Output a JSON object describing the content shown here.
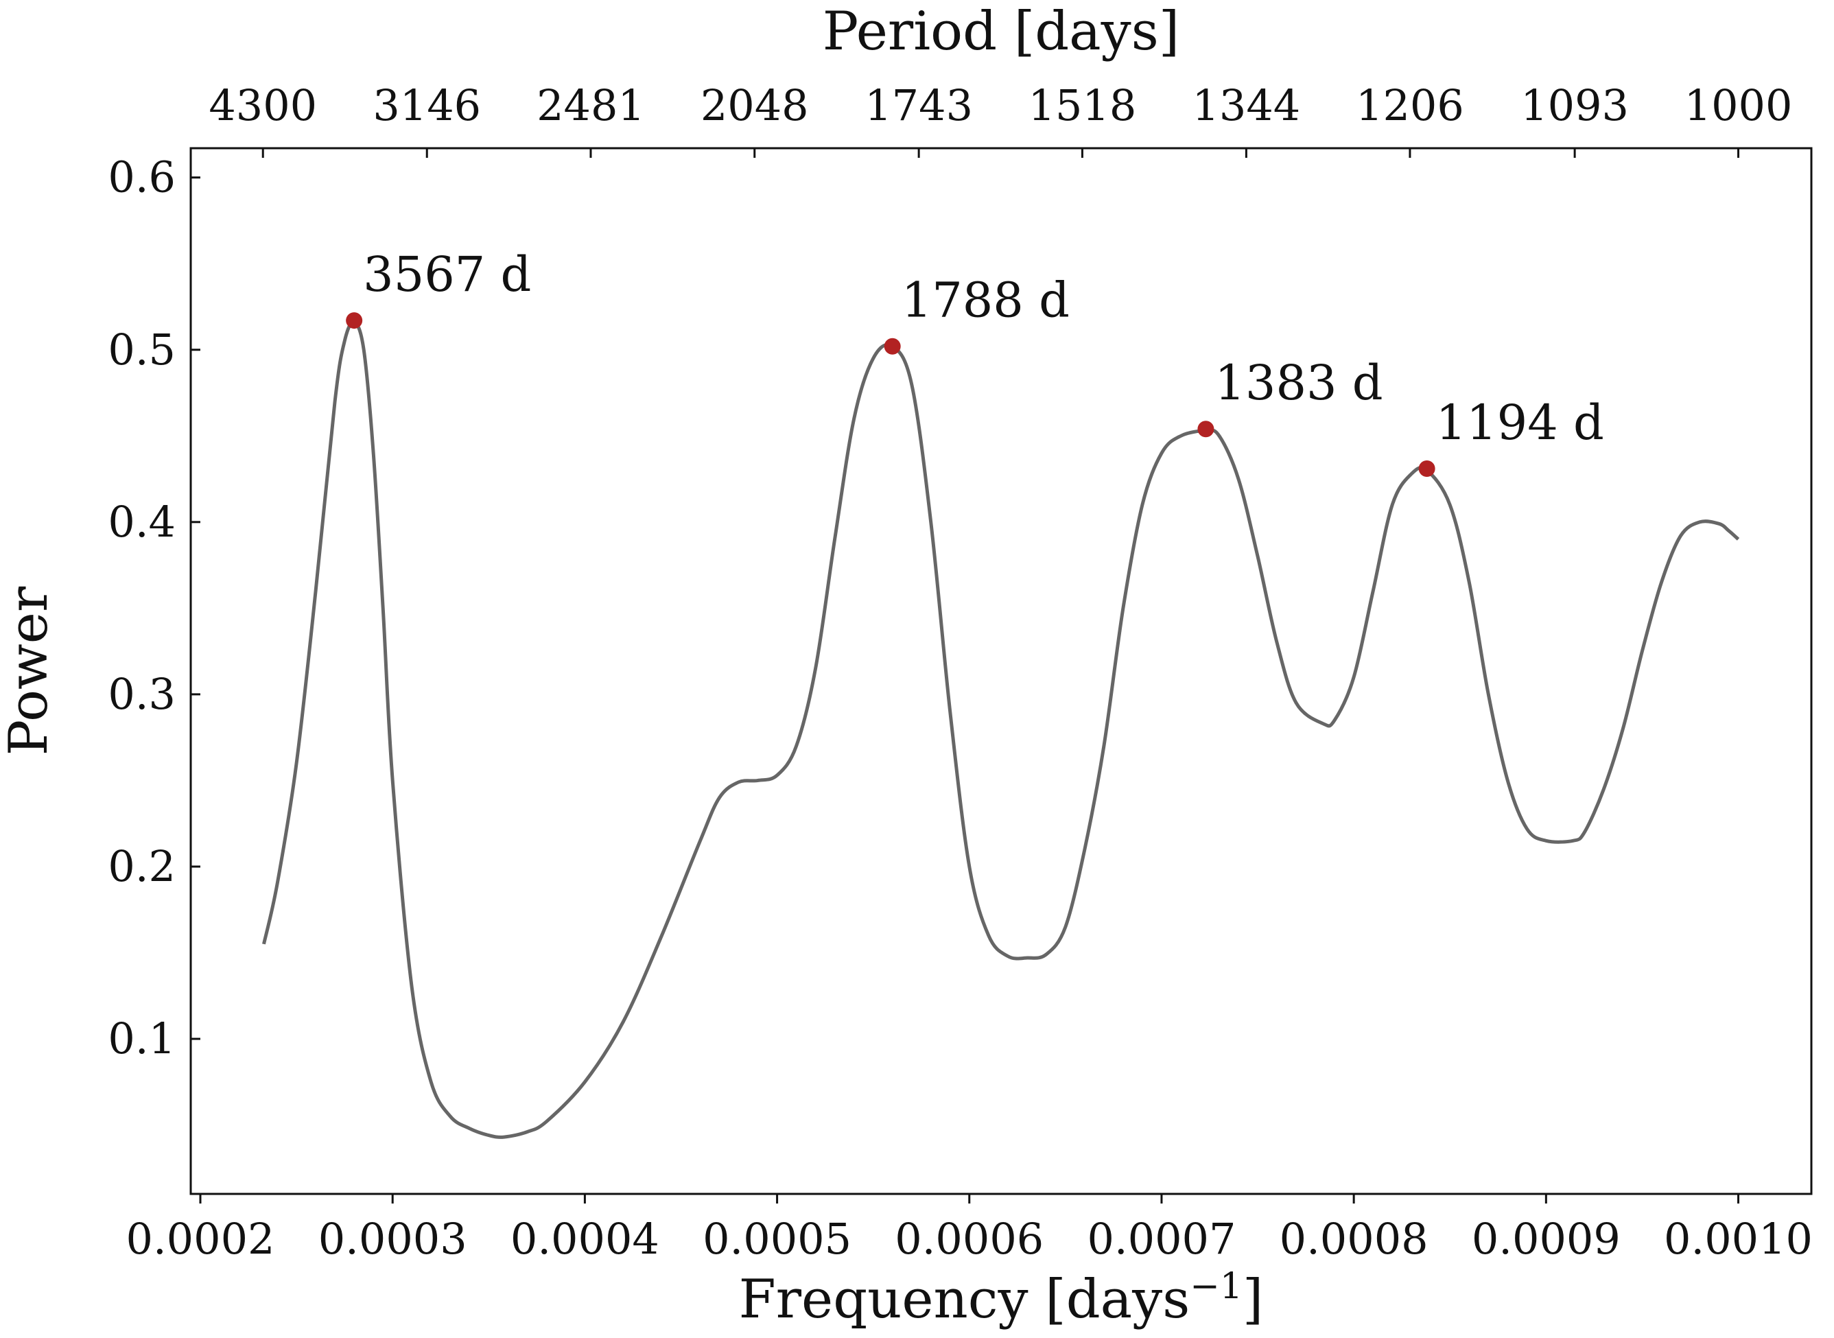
{
  "colors": {
    "line": "#666666",
    "peak": "#b22222",
    "frame": "#111111"
  },
  "chart_data": {
    "type": "line",
    "xlabel_prefix": "Frequency [days",
    "xlabel_sup": "−1",
    "xlabel_suffix": "]",
    "ylabel": "Power",
    "top_xlabel": "Period [days]",
    "xlim": [
      0.000195,
      0.001038
    ],
    "ylim": [
      0.01,
      0.617
    ],
    "x_ticks": [
      0.0002,
      0.0003,
      0.0004,
      0.0005,
      0.0006,
      0.0007,
      0.0008,
      0.0009,
      0.001
    ],
    "x_tick_labels": [
      "0.0002",
      "0.0003",
      "0.0004",
      "0.0005",
      "0.0006",
      "0.0007",
      "0.0008",
      "0.0009",
      "0.0010"
    ],
    "y_ticks": [
      0.1,
      0.2,
      0.3,
      0.4,
      0.5,
      0.6
    ],
    "y_tick_labels": [
      "0.1",
      "0.2",
      "0.3",
      "0.4",
      "0.5",
      "0.6"
    ],
    "top_ticks": [
      {
        "period": 4300,
        "label": "4300"
      },
      {
        "period": 3146,
        "label": "3146"
      },
      {
        "period": 2481,
        "label": "2481"
      },
      {
        "period": 2048,
        "label": "2048"
      },
      {
        "period": 1743,
        "label": "1743"
      },
      {
        "period": 1518,
        "label": "1518"
      },
      {
        "period": 1344,
        "label": "1344"
      },
      {
        "period": 1206,
        "label": "1206"
      },
      {
        "period": 1093,
        "label": "1093"
      },
      {
        "period": 1000,
        "label": "1000"
      }
    ],
    "grid": false,
    "series": [
      {
        "x": [
          0.000233,
          0.00024,
          0.00025,
          0.00026,
          0.00027,
          0.000275,
          0.00028,
          0.000285,
          0.00029,
          0.000295,
          0.0003,
          0.00031,
          0.00032,
          0.00033,
          0.00034,
          0.00035,
          0.000358,
          0.00037,
          0.00038,
          0.0004,
          0.00042,
          0.00044,
          0.00046,
          0.00047,
          0.00048,
          0.00049,
          0.0005,
          0.00051,
          0.00052,
          0.00053,
          0.00054,
          0.00055,
          0.00056,
          0.00057,
          0.00058,
          0.00059,
          0.0006,
          0.00061,
          0.00062,
          0.00063,
          0.00064,
          0.00065,
          0.00066,
          0.00067,
          0.00068,
          0.00069,
          0.0007,
          0.00071,
          0.000723,
          0.00073,
          0.00074,
          0.00075,
          0.00076,
          0.00077,
          0.000784,
          0.00079,
          0.0008,
          0.00081,
          0.00082,
          0.00083,
          0.000838,
          0.00085,
          0.00086,
          0.00087,
          0.00088,
          0.00089,
          0.0009,
          0.000914,
          0.00092,
          0.00093,
          0.00094,
          0.00095,
          0.00096,
          0.00097,
          0.00098,
          0.00099,
          0.000995,
          0.001
        ],
        "y": [
          0.155,
          0.19,
          0.26,
          0.36,
          0.47,
          0.505,
          0.516,
          0.5,
          0.44,
          0.35,
          0.25,
          0.13,
          0.075,
          0.055,
          0.048,
          0.044,
          0.043,
          0.046,
          0.052,
          0.075,
          0.11,
          0.16,
          0.215,
          0.24,
          0.249,
          0.25,
          0.253,
          0.27,
          0.315,
          0.39,
          0.46,
          0.495,
          0.502,
          0.48,
          0.4,
          0.29,
          0.2,
          0.16,
          0.148,
          0.147,
          0.149,
          0.165,
          0.21,
          0.27,
          0.35,
          0.41,
          0.44,
          0.45,
          0.453,
          0.45,
          0.425,
          0.38,
          0.33,
          0.295,
          0.283,
          0.285,
          0.31,
          0.36,
          0.41,
          0.428,
          0.43,
          0.41,
          0.365,
          0.3,
          0.25,
          0.222,
          0.215,
          0.215,
          0.22,
          0.245,
          0.28,
          0.325,
          0.365,
          0.392,
          0.4,
          0.399,
          0.395,
          0.39
        ]
      }
    ],
    "peaks": [
      {
        "x": 0.00028,
        "y": 0.517,
        "label": "3567 d"
      },
      {
        "x": 0.00056,
        "y": 0.502,
        "label": "1788 d"
      },
      {
        "x": 0.000723,
        "y": 0.454,
        "label": "1383 d"
      },
      {
        "x": 0.000838,
        "y": 0.431,
        "label": "1194 d"
      }
    ]
  }
}
